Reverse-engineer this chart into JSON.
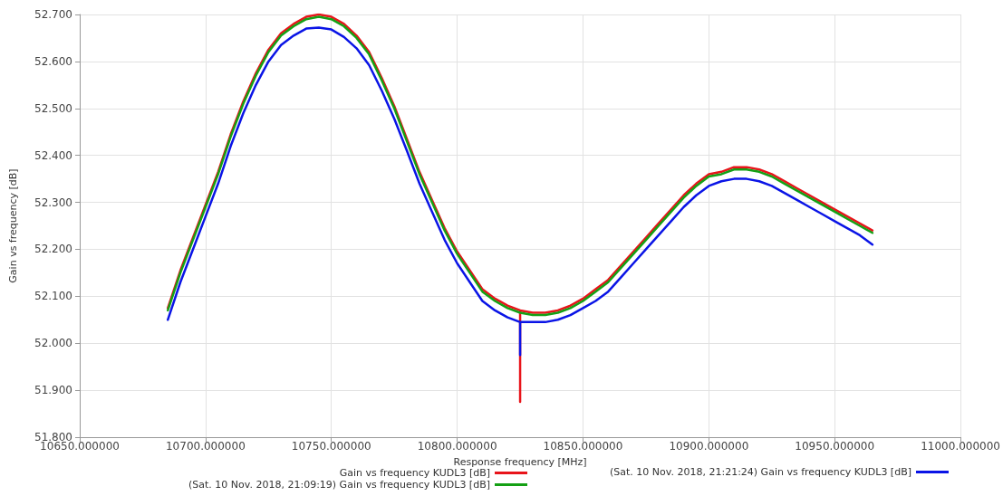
{
  "chart_data": {
    "type": "line",
    "xlabel": "Response frequency [MHz]",
    "ylabel": "Gain vs frequency [dB]",
    "x": [
      10685,
      10690,
      10695,
      10700,
      10705,
      10710,
      10715,
      10720,
      10725,
      10730,
      10735,
      10740,
      10745,
      10750,
      10755,
      10760,
      10765,
      10770,
      10775,
      10780,
      10785,
      10790,
      10795,
      10800,
      10805,
      10810,
      10815,
      10820,
      10825,
      10830,
      10835,
      10840,
      10845,
      10850,
      10855,
      10860,
      10865,
      10870,
      10875,
      10880,
      10885,
      10890,
      10895,
      10900,
      10905,
      10910,
      10915,
      10920,
      10925,
      10930,
      10935,
      10940,
      10945,
      10950,
      10955,
      10960,
      10965
    ],
    "series": [
      {
        "name": "Gain vs frequency KUDL3 [dB]",
        "color": "#e8141a",
        "x": [
          10685,
          10690,
          10695,
          10700,
          10705,
          10710,
          10715,
          10720,
          10725,
          10730,
          10735,
          10740,
          10745,
          10750,
          10755,
          10760,
          10765,
          10770,
          10775,
          10780,
          10785,
          10790,
          10795,
          10800,
          10805,
          10810,
          10815,
          10820,
          10825,
          10825,
          10825,
          10830,
          10835,
          10840,
          10845,
          10850,
          10855,
          10860,
          10865,
          10870,
          10875,
          10880,
          10885,
          10890,
          10895,
          10900,
          10905,
          10910,
          10915,
          10920,
          10925,
          10930,
          10935,
          10940,
          10945,
          10950,
          10955,
          10960,
          10965
        ],
        "values": [
          52.075,
          52.155,
          52.225,
          52.295,
          52.365,
          52.445,
          52.515,
          52.575,
          52.625,
          52.66,
          52.68,
          52.695,
          52.7,
          52.695,
          52.68,
          52.655,
          52.62,
          52.565,
          52.505,
          52.435,
          52.365,
          52.305,
          52.245,
          52.195,
          52.155,
          52.115,
          52.095,
          52.08,
          52.07,
          51.875,
          52.07,
          52.065,
          52.065,
          52.07,
          52.08,
          52.095,
          52.115,
          52.135,
          52.165,
          52.195,
          52.225,
          52.255,
          52.285,
          52.315,
          52.34,
          52.36,
          52.365,
          52.375,
          52.375,
          52.37,
          52.36,
          52.345,
          52.33,
          52.315,
          52.3,
          52.285,
          52.27,
          52.255,
          52.24
        ]
      },
      {
        "name": "(Sat. 10 Nov. 2018, 21:09:19) Gain vs frequency KUDL3 [dB]",
        "color": "#14a014",
        "values": [
          52.07,
          52.15,
          52.22,
          52.29,
          52.36,
          52.44,
          52.51,
          52.57,
          52.62,
          52.655,
          52.675,
          52.69,
          52.695,
          52.69,
          52.675,
          52.65,
          52.615,
          52.56,
          52.5,
          52.43,
          52.36,
          52.3,
          52.24,
          52.19,
          52.15,
          52.11,
          52.09,
          52.075,
          52.065,
          52.06,
          52.06,
          52.065,
          52.075,
          52.09,
          52.11,
          52.13,
          52.16,
          52.19,
          52.22,
          52.25,
          52.28,
          52.31,
          52.335,
          52.355,
          52.36,
          52.37,
          52.37,
          52.365,
          52.355,
          52.34,
          52.325,
          52.31,
          52.295,
          52.28,
          52.265,
          52.25,
          52.235
        ]
      },
      {
        "name": "(Sat. 10 Nov. 2018, 21:21:24) Gain vs frequency KUDL3 [dB]",
        "color": "#0a14e6",
        "x": [
          10685,
          10690,
          10695,
          10700,
          10705,
          10710,
          10715,
          10720,
          10725,
          10730,
          10735,
          10740,
          10745,
          10750,
          10755,
          10760,
          10765,
          10770,
          10775,
          10780,
          10785,
          10790,
          10795,
          10800,
          10805,
          10810,
          10815,
          10820,
          10825,
          10825,
          10825,
          10830,
          10835,
          10840,
          10845,
          10850,
          10855,
          10860,
          10865,
          10870,
          10875,
          10880,
          10885,
          10890,
          10895,
          10900,
          10905,
          10910,
          10915,
          10920,
          10925,
          10930,
          10935,
          10940,
          10945,
          10950,
          10955,
          10960,
          10965
        ],
        "values": [
          52.05,
          52.13,
          52.2,
          52.27,
          52.34,
          52.42,
          52.49,
          52.55,
          52.6,
          52.635,
          52.655,
          52.67,
          52.672,
          52.668,
          52.652,
          52.628,
          52.592,
          52.538,
          52.478,
          52.41,
          52.34,
          52.28,
          52.22,
          52.17,
          52.13,
          52.09,
          52.07,
          52.055,
          52.045,
          51.975,
          52.045,
          52.045,
          52.045,
          52.05,
          52.06,
          52.075,
          52.09,
          52.11,
          52.14,
          52.17,
          52.2,
          52.23,
          52.26,
          52.29,
          52.315,
          52.335,
          52.345,
          52.35,
          52.35,
          52.345,
          52.335,
          52.32,
          52.305,
          52.29,
          52.275,
          52.26,
          52.245,
          52.23,
          52.21
        ]
      }
    ],
    "xlim": [
      10650,
      11000
    ],
    "xticks": [
      {
        "value": 10650,
        "label": "10650.000000"
      },
      {
        "value": 10700,
        "label": "10700.000000"
      },
      {
        "value": 10750,
        "label": "10750.000000"
      },
      {
        "value": 10800,
        "label": "10800.000000"
      },
      {
        "value": 10850,
        "label": "10850.000000"
      },
      {
        "value": 10900,
        "label": "10900.000000"
      },
      {
        "value": 10950,
        "label": "10950.000000"
      },
      {
        "value": 11000,
        "label": "11000.000000"
      }
    ],
    "ylim": [
      51.8,
      52.7
    ],
    "yticks": [
      {
        "value": 51.8,
        "label": "51.800"
      },
      {
        "value": 51.9,
        "label": "51.900"
      },
      {
        "value": 52.0,
        "label": "52.000"
      },
      {
        "value": 52.1,
        "label": "52.100"
      },
      {
        "value": 52.2,
        "label": "52.200"
      },
      {
        "value": 52.3,
        "label": "52.300"
      },
      {
        "value": 52.4,
        "label": "52.400"
      },
      {
        "value": 52.5,
        "label": "52.500"
      },
      {
        "value": 52.6,
        "label": "52.600"
      },
      {
        "value": 52.7,
        "label": "52.700"
      }
    ],
    "grid": true,
    "legend": "bottom",
    "marker": "none",
    "line_style": "solid"
  }
}
